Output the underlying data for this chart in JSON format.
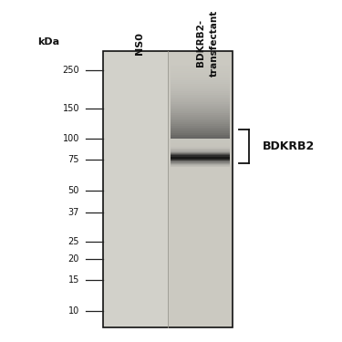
{
  "figure_bg": "#ffffff",
  "gel_bg": "#cac9c2",
  "lane1_bg": "#d2d1ca",
  "lane2_bg": "#cbc9c1",
  "kda_label": "kDa",
  "marker_positions": [
    250,
    150,
    100,
    75,
    50,
    37,
    25,
    20,
    15,
    10
  ],
  "lane_labels": [
    "NS0",
    "BDKRB2-\ntransfectant"
  ],
  "annotation_label": "BDKRB2",
  "gel_outline": "#111111",
  "log_min": 0.903,
  "log_max": 2.505
}
